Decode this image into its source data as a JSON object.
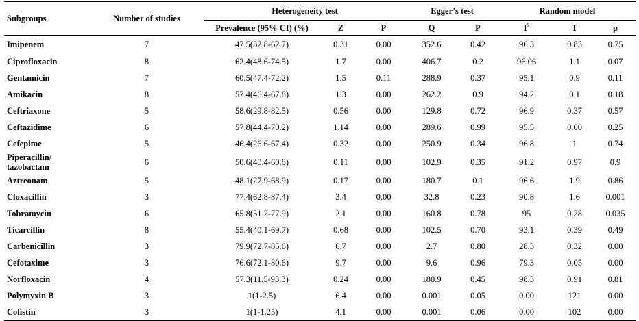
{
  "header": {
    "subgroups": "Subgroups",
    "studies": "Number of studies",
    "heterogeneity": "Heterogeneity test",
    "egger": "Egger’s test",
    "random": "Random model",
    "prevalence": "Prevalence (95% CI) (%)",
    "z": "Z",
    "p1": "P",
    "q": "Q",
    "p2": "P",
    "i2": "I",
    "i2_sup": "2",
    "t": "T",
    "p3": "p"
  },
  "rows": [
    {
      "name": "Imipenem",
      "n": "7",
      "prev": "47.5(32.8-62.7)",
      "z": "0.31",
      "p1": "0.00",
      "q": "352.6",
      "p2": "0.42",
      "i2": "96.3",
      "t": "0.83",
      "p3": "0.75"
    },
    {
      "name": "Ciprofloxacin",
      "n": "8",
      "prev": "62.4(48.6-74.5)",
      "z": "1.7",
      "p1": "0.00",
      "q": "406.7",
      "p2": "0.2",
      "i2": "96.06",
      "t": "1.1",
      "p3": "0.07"
    },
    {
      "name": "Gentamicin",
      "n": "7",
      "prev": "60.5(47.4-72.2)",
      "z": "1.5",
      "p1": "0.11",
      "q": "288.9",
      "p2": "0.37",
      "i2": "95.1",
      "t": "0.9",
      "p3": "0.11"
    },
    {
      "name": "Amikacin",
      "n": "8",
      "prev": "57.4(46.4-67.8)",
      "z": "1.3",
      "p1": "0.00",
      "q": "262.2",
      "p2": "0.9",
      "i2": "94.2",
      "t": "0.1",
      "p3": "0.18"
    },
    {
      "name": "Ceftriaxone",
      "n": "5",
      "prev": "58.6(29.8-82.5)",
      "z": "0.56",
      "p1": "0.00",
      "q": "129.8",
      "p2": "0.72",
      "i2": "96.9",
      "t": "0.37",
      "p3": "0.57"
    },
    {
      "name": "Ceftazidime",
      "n": "6",
      "prev": "57.8(44.4-70.2)",
      "z": "1.14",
      "p1": "0.00",
      "q": "289.6",
      "p2": "0.99",
      "i2": "95.5",
      "t": "0.00",
      "p3": "0.25"
    },
    {
      "name": "Cefepime",
      "n": "5",
      "prev": "46.4(26.6-67.4)",
      "z": "0.32",
      "p1": "0.00",
      "q": "250.9",
      "p2": "0.34",
      "i2": "96.8",
      "t": "1",
      "p3": "0.74"
    },
    {
      "name": "Piperacillin/",
      "name2": "tazobactam",
      "n": "6",
      "prev": "50.6(40.4-60.8)",
      "z": "0.11",
      "p1": "0.00",
      "q": "102.9",
      "p2": "0.35",
      "i2": "91.2",
      "t": "0.97",
      "p3": "0.9"
    },
    {
      "name": "Aztreonam",
      "n": "5",
      "prev": "48.1(27.9-68.9)",
      "z": "0.17",
      "p1": "0.00",
      "q": "180.7",
      "p2": "0.1",
      "i2": "96.6",
      "t": "1.9",
      "p3": "0.86"
    },
    {
      "name": "Cloxacillin",
      "n": "3",
      "prev": "77.4(62.8-87.4)",
      "z": "3.4",
      "p1": "0.00",
      "q": "32.8",
      "p2": "0.23",
      "i2": "90.8",
      "t": "1.6",
      "p3": "0.001"
    },
    {
      "name": "Tobramycin",
      "n": "6",
      "prev": "65.8(51.2-77.9)",
      "z": "2.1",
      "p1": "0.00",
      "q": "160.8",
      "p2": "0.78",
      "i2": "95",
      "t": "0.28",
      "p3": "0.035"
    },
    {
      "name": "Ticarcillin",
      "n": "8",
      "prev": "55.4(40.1-69.7)",
      "z": "0.68",
      "p1": "0.00",
      "q": "102.5",
      "p2": "0.70",
      "i2": "93.1",
      "t": "0.39",
      "p3": "0.49"
    },
    {
      "name": "Carbenicillin",
      "n": "3",
      "prev": "79.9(72.7-85.6)",
      "z": "6.7",
      "p1": "0.00",
      "q": "2.7",
      "p2": "0.80",
      "i2": "28.3",
      "t": "0.32",
      "p3": "0.00"
    },
    {
      "name": "Cefotaxime",
      "n": "3",
      "prev": "76.6(72.1-80.6)",
      "z": "9.7",
      "p1": "0.00",
      "q": "9.6",
      "p2": "0.96",
      "i2": "79.3",
      "t": "0.05",
      "p3": "0.00"
    },
    {
      "name": "Norfloxacin",
      "n": "4",
      "prev": "57.3(11.5-93.3)",
      "z": "0.24",
      "p1": "0.00",
      "q": "180.9",
      "p2": "0.45",
      "i2": "98.3",
      "t": "0.91",
      "p3": "0.81"
    },
    {
      "name": "Polymyxin B",
      "n": "3",
      "prev": "1(1-2.5)",
      "z": "6.4",
      "p1": "0.00",
      "q": "0.001",
      "p2": "0.05",
      "i2": "0.00",
      "t": "121",
      "p3": "0.00"
    },
    {
      "name": "Colistin",
      "n": "3",
      "prev": "1(1-1.25)",
      "z": "4.1",
      "p1": "0.00",
      "q": "0.001",
      "p2": "0.06",
      "i2": "0.00",
      "t": "102",
      "p3": "0.00"
    }
  ]
}
